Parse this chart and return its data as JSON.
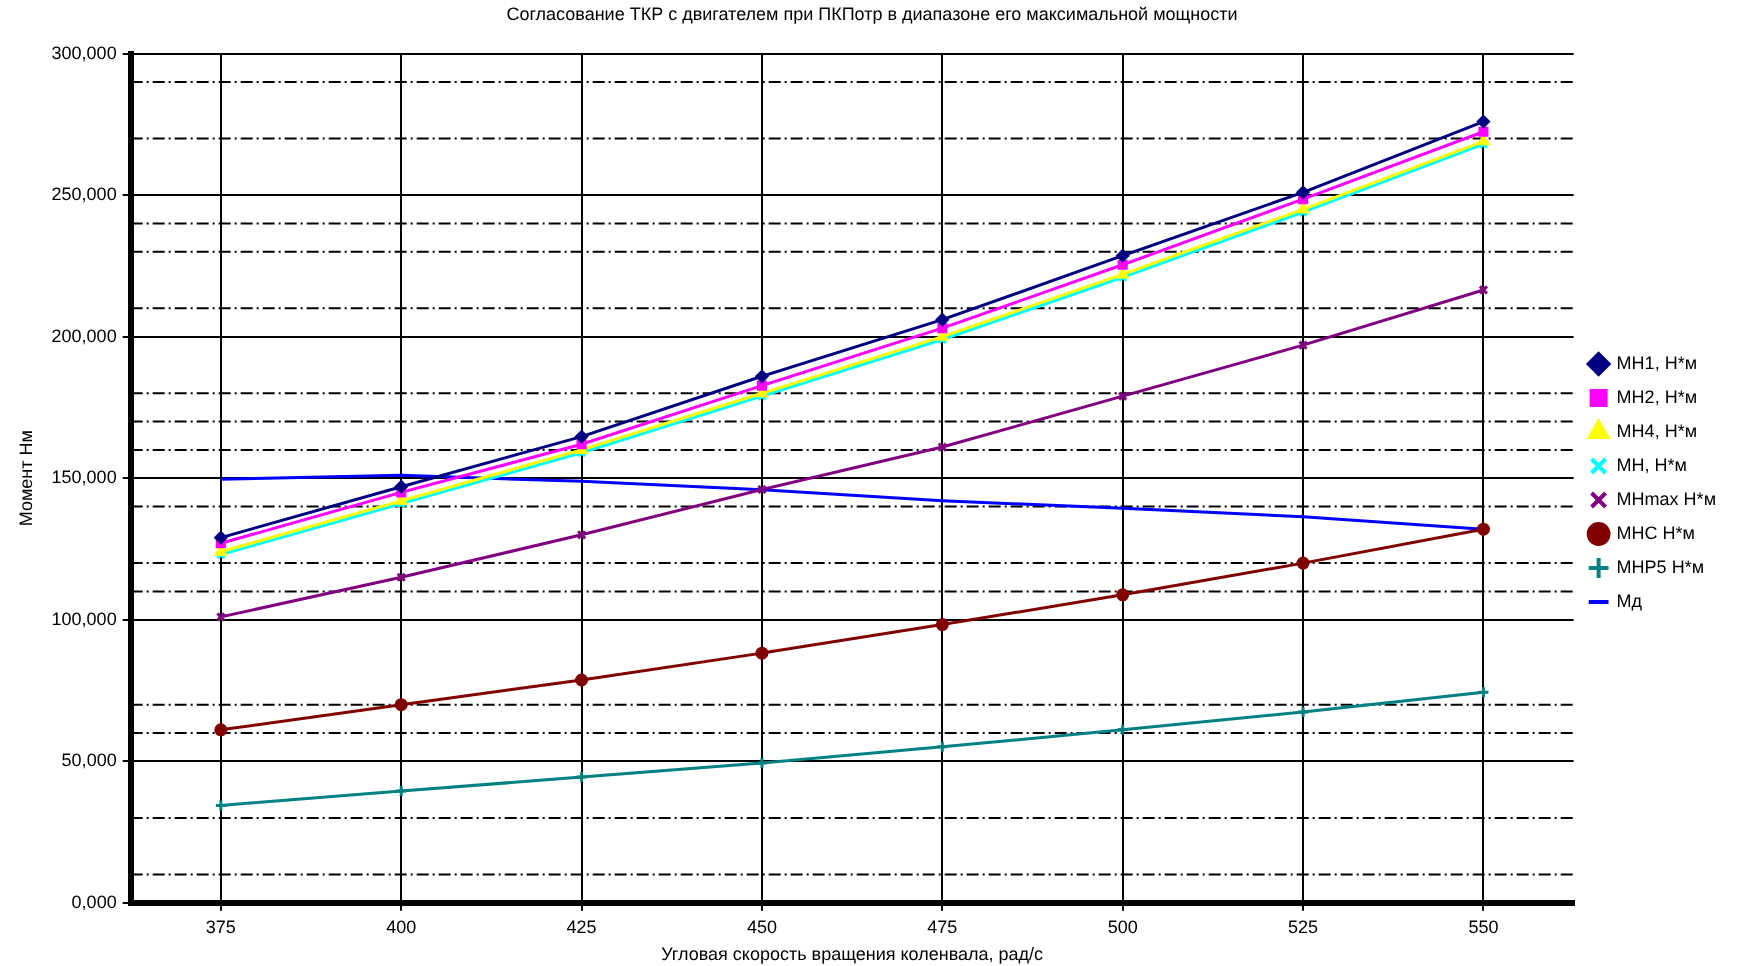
{
  "chart_data": {
    "type": "line",
    "title": "Согласование ТКР с двигателем при ПКПотр в диапазоне его максимальной мощности",
    "xlabel": "Угловая скорость вращения коленвала, рад/с",
    "ylabel": "Момент Нм",
    "categories": [
      "375",
      "400",
      "425",
      "450",
      "475",
      "500",
      "525",
      "550"
    ],
    "ylim": [
      0,
      300000
    ],
    "yticks": [
      {
        "value": 0,
        "label": "0,000"
      },
      {
        "value": 50000,
        "label": "50,000"
      },
      {
        "value": 100000,
        "label": "100,000"
      },
      {
        "value": 150000,
        "label": "150,000"
      },
      {
        "value": 200000,
        "label": "200,000"
      },
      {
        "value": 250000,
        "label": "250,000"
      },
      {
        "value": 300000,
        "label": "300,000"
      }
    ],
    "grid": true,
    "legend": "right",
    "ref_lines": [
      {
        "axis": "y",
        "value": 10000,
        "color": "#000000",
        "line_style": "dashed"
      },
      {
        "axis": "y",
        "value": 30000,
        "color": "#000000",
        "line_style": "dashed"
      },
      {
        "axis": "y",
        "value": 60000,
        "color": "#000000",
        "line_style": "dashed"
      },
      {
        "axis": "y",
        "value": 70000,
        "color": "#000000",
        "line_style": "dashed"
      },
      {
        "axis": "y",
        "value": 110000,
        "color": "#000000",
        "line_style": "dashed"
      },
      {
        "axis": "y",
        "value": 120000,
        "color": "#000000",
        "line_style": "dashed"
      },
      {
        "axis": "y",
        "value": 140000,
        "color": "#000000",
        "line_style": "dashed"
      },
      {
        "axis": "y",
        "value": 160000,
        "color": "#000000",
        "line_style": "dashed"
      },
      {
        "axis": "y",
        "value": 170000,
        "color": "#000000",
        "line_style": "dashed"
      },
      {
        "axis": "y",
        "value": 180000,
        "color": "#000000",
        "line_style": "dashed"
      },
      {
        "axis": "y",
        "value": 210000,
        "color": "#000000",
        "line_style": "dashed"
      },
      {
        "axis": "y",
        "value": 230000,
        "color": "#000000",
        "line_style": "dashed"
      },
      {
        "axis": "y",
        "value": 240000,
        "color": "#000000",
        "line_style": "dashed"
      },
      {
        "axis": "y",
        "value": 270000,
        "color": "#000000",
        "line_style": "dashed"
      },
      {
        "axis": "y",
        "value": 290000,
        "color": "#000000",
        "line_style": "dashed"
      }
    ],
    "series": [
      {
        "name": "МН1, Н*м",
        "color": "#000080",
        "marker": "diamond",
        "values": [
          129000,
          147000,
          164700,
          186000,
          206000,
          228600,
          251000,
          276000
        ]
      },
      {
        "name": "МН2, Н*м",
        "color": "#ff00ff",
        "marker": "square",
        "values": [
          127000,
          145000,
          162000,
          182700,
          203000,
          225400,
          248600,
          272400
        ]
      },
      {
        "name": "МН4, Н*м",
        "color": "#ffff00",
        "marker": "triangle",
        "values": [
          124000,
          142000,
          160000,
          180000,
          200000,
          222000,
          245000,
          269000
        ]
      },
      {
        "name": "МН, Н*м",
        "color": "#00ffff",
        "marker": "cross",
        "values": [
          123000,
          141000,
          159000,
          179000,
          199000,
          221000,
          244000,
          268000
        ]
      },
      {
        "name": "МНmax Н*м",
        "color": "#800080",
        "marker": "cross",
        "values": [
          101000,
          115000,
          130000,
          146000,
          161000,
          179000,
          197000,
          216500
        ]
      },
      {
        "name": "МНС Н*м",
        "color": "#800000",
        "marker": "circle",
        "values": [
          61100,
          70000,
          78700,
          88200,
          98300,
          108800,
          120000,
          132000
        ]
      },
      {
        "name": "МНР5 Н*м",
        "color": "#008080",
        "marker": "plus",
        "values": [
          34400,
          39500,
          44400,
          49400,
          55100,
          61100,
          67400,
          74400
        ]
      },
      {
        "name": "Мд",
        "color": "#0000ff",
        "marker": "none",
        "values": [
          149600,
          151000,
          148900,
          145900,
          142000,
          139400,
          136400,
          132000
        ]
      }
    ]
  }
}
